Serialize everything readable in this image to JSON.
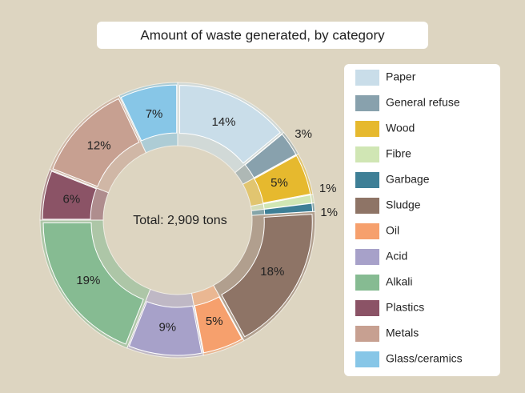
{
  "chart_data": {
    "type": "donut",
    "title": "Amount of waste generated, by category",
    "center_label": "Total: 2,909 tons",
    "categories": [
      "Paper",
      "General refuse",
      "Wood",
      "Fibre",
      "Garbage",
      "Sludge",
      "Oil",
      "Acid",
      "Alkali",
      "Plastics",
      "Metals",
      "Glass/ceramics"
    ],
    "values": [
      14,
      3,
      5,
      1,
      1,
      18,
      5,
      9,
      19,
      6,
      12,
      7
    ],
    "value_labels": [
      "14%",
      "3%",
      "5%",
      "1%",
      "1%",
      "18%",
      "5%",
      "9%",
      "19%",
      "6%",
      "12%",
      "7%"
    ],
    "colors": [
      "#c9dde9",
      "#88a1ad",
      "#e6b92e",
      "#d0e6b4",
      "#3e7f96",
      "#8e7466",
      "#f6a06d",
      "#a7a1c9",
      "#86bb92",
      "#8b5366",
      "#c7a091",
      "#87c6e7"
    ]
  }
}
